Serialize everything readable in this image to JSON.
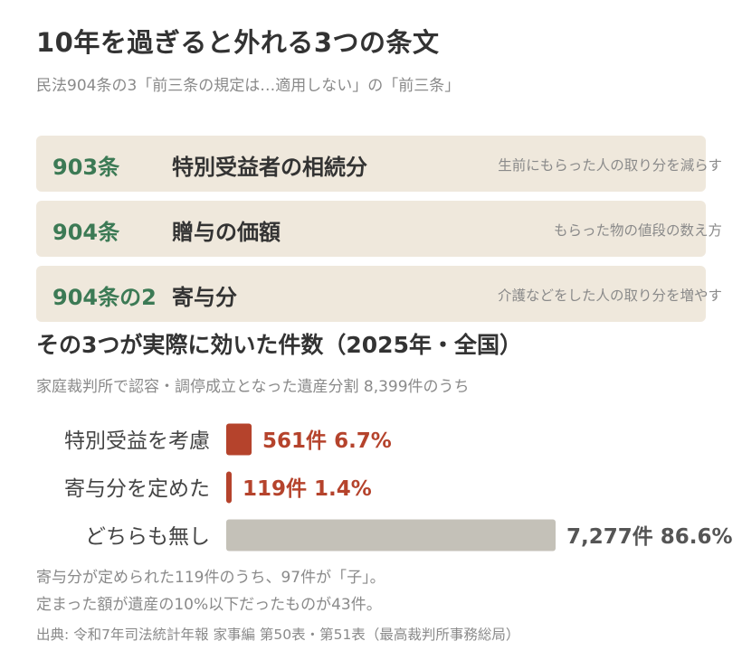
{
  "title": "10年を過ぎると外れる3つの条文",
  "subtitle": "民法904条の3「前三条の規定は…適用しない」の「前三条」",
  "articles": [
    {
      "num": "903条",
      "name": "特別受益者の相続分",
      "desc": "生前にもらった人の取り分を減らす"
    },
    {
      "num": "904条",
      "name": "贈与の価額",
      "desc": "もらった物の値段の数え方"
    },
    {
      "num": "904条の2",
      "name": "寄与分",
      "desc": "介護などをした人の取り分を増やす"
    }
  ],
  "section_title": "その3つが実際に効いた件数（2025年・全国）",
  "section_subtitle": "家庭裁判所で認容・調停成立となった遺産分割 8,399件のうち",
  "notes": [
    "寄与分が定められた119件のうち、97件が「子」。",
    "定まった額が遺産の10%以下だったものが43件。"
  ],
  "source": "出典: 令和7年司法統計年報 家事編 第50表・第51表（最高裁判所事務総局）",
  "colors": {
    "accent": "#b5432c",
    "neutral": "#c4c1b8",
    "green": "#3c7a55",
    "card_bg": "#efe8dc"
  },
  "chart_data": {
    "type": "bar",
    "orientation": "horizontal",
    "total": 8399,
    "categories": [
      "特別受益を考慮",
      "寄与分を定めた",
      "どちらも無し"
    ],
    "values": [
      561,
      119,
      7277
    ],
    "percents": [
      6.7,
      1.4,
      86.6
    ],
    "value_labels": [
      "561件 6.7%",
      "119件 1.4%",
      "7,277件 86.6%"
    ],
    "bar_colors": [
      "#b5432c",
      "#b5432c",
      "#c4c1b8"
    ],
    "label_colors": [
      "#b5432c",
      "#b5432c",
      "#555555"
    ]
  }
}
